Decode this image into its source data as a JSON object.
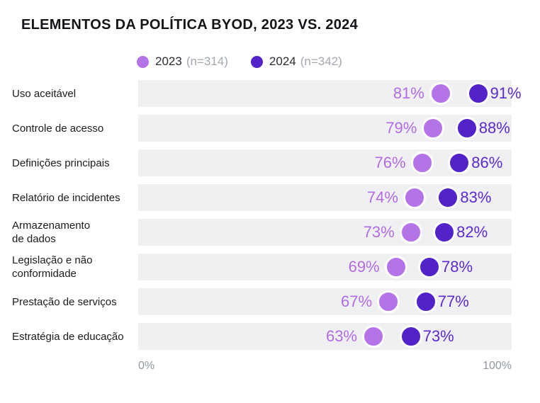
{
  "title": "ELEMENTOS DA POLÍTICA BYOD, 2023 VS. 2024",
  "legend": {
    "items": [
      {
        "label": "2023",
        "n_label": "(n=314)",
        "color": "#b573e8"
      },
      {
        "label": "2024",
        "n_label": "(n=342)",
        "color": "#5123c8"
      }
    ]
  },
  "axis": {
    "min_label": "0%",
    "max_label": "100%"
  },
  "colors": {
    "series_2023": "#b573e8",
    "series_2024": "#5123c8",
    "value_text_2023": "#b16ce4",
    "value_text_2024": "#5c2ad2",
    "track": "#f0f0f2",
    "axis_text": "#8f96a0",
    "title_text": "#121417",
    "category_text": "#191b1e",
    "legend_n_text": "#a3a8b0"
  },
  "chart_data": {
    "type": "scatter",
    "subtype": "dot-plot",
    "title": "ELEMENTOS DA POLÍTICA BYOD, 2023 VS. 2024",
    "categories": [
      "Uso aceitável",
      "Controle de acesso",
      "Definições principais",
      "Relatório de incidentes",
      "Armazenamento de dados",
      "Legislação e não conformidade",
      "Prestação de serviços",
      "Estratégia de educação"
    ],
    "category_label_lines": [
      [
        "Uso aceitável"
      ],
      [
        "Controle de acesso"
      ],
      [
        "Definições principais"
      ],
      [
        "Relatório de incidentes"
      ],
      [
        "Armazenamento",
        "de dados"
      ],
      [
        "Legislação e não",
        "conformidade"
      ],
      [
        "Prestação de serviços"
      ],
      [
        "Estratégia de educação"
      ]
    ],
    "series": [
      {
        "name": "2023",
        "sample_label": "(n=314)",
        "color": "#b573e8",
        "values": [
          81,
          79,
          76,
          74,
          73,
          69,
          67,
          63
        ]
      },
      {
        "name": "2024",
        "sample_label": "(n=342)",
        "color": "#5123c8",
        "values": [
          91,
          88,
          86,
          83,
          82,
          78,
          77,
          73
        ]
      }
    ],
    "value_suffix": "%",
    "xlim": [
      0,
      100
    ],
    "x_tick_labels": [
      "0%",
      "100%"
    ],
    "legend_position": "top",
    "grid": false
  }
}
